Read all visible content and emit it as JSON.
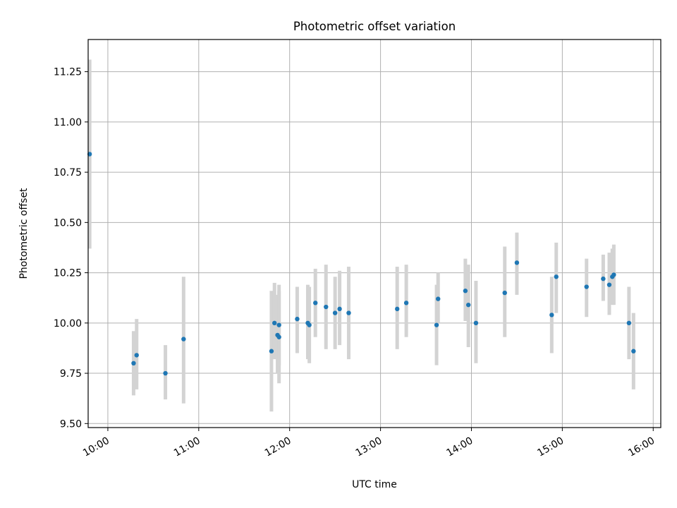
{
  "chart_data": {
    "type": "scatter",
    "title": "Photometric offset variation",
    "xlabel": "UTC time",
    "ylabel": "Photometric offset",
    "xlim": [
      "09:47",
      "16:05"
    ],
    "ylim": [
      9.48,
      11.41
    ],
    "x_ticks": [
      "10:00",
      "11:00",
      "12:00",
      "13:00",
      "14:00",
      "15:00",
      "16:00"
    ],
    "y_ticks": [
      "9.50",
      "9.75",
      "10.00",
      "10.25",
      "10.50",
      "10.75",
      "11.00",
      "11.25"
    ],
    "grid": true,
    "errorbars": true,
    "colors": {
      "point": "#1f77b4",
      "errorbar": "#d3d3d3",
      "grid": "#b0b0b0"
    },
    "points": [
      {
        "x": "09:48",
        "y": 10.84,
        "ylow": 10.37,
        "yhigh": 11.31
      },
      {
        "x": "10:17",
        "y": 9.8,
        "ylow": 9.64,
        "yhigh": 9.96
      },
      {
        "x": "10:19",
        "y": 9.84,
        "ylow": 9.67,
        "yhigh": 10.02
      },
      {
        "x": "10:38",
        "y": 9.75,
        "ylow": 9.62,
        "yhigh": 9.89
      },
      {
        "x": "10:50",
        "y": 9.92,
        "ylow": 9.6,
        "yhigh": 10.23
      },
      {
        "x": "11:48",
        "y": 9.86,
        "ylow": 9.56,
        "yhigh": 10.16
      },
      {
        "x": "11:50",
        "y": 10.0,
        "ylow": 9.82,
        "yhigh": 10.2
      },
      {
        "x": "11:52",
        "y": 9.94,
        "ylow": 9.75,
        "yhigh": 10.14
      },
      {
        "x": "11:53",
        "y": 9.93,
        "ylow": 9.7,
        "yhigh": 10.16
      },
      {
        "x": "11:53",
        "y": 9.99,
        "ylow": 9.79,
        "yhigh": 10.19
      },
      {
        "x": "12:05",
        "y": 10.02,
        "ylow": 9.85,
        "yhigh": 10.18
      },
      {
        "x": "12:12",
        "y": 10.0,
        "ylow": 9.82,
        "yhigh": 10.19
      },
      {
        "x": "12:13",
        "y": 9.99,
        "ylow": 9.8,
        "yhigh": 10.18
      },
      {
        "x": "12:17",
        "y": 10.1,
        "ylow": 9.93,
        "yhigh": 10.27
      },
      {
        "x": "12:24",
        "y": 10.08,
        "ylow": 9.87,
        "yhigh": 10.29
      },
      {
        "x": "12:30",
        "y": 10.05,
        "ylow": 9.87,
        "yhigh": 10.23
      },
      {
        "x": "12:33",
        "y": 10.07,
        "ylow": 9.89,
        "yhigh": 10.26
      },
      {
        "x": "12:39",
        "y": 10.05,
        "ylow": 9.82,
        "yhigh": 10.28
      },
      {
        "x": "13:11",
        "y": 10.07,
        "ylow": 9.87,
        "yhigh": 10.28
      },
      {
        "x": "13:17",
        "y": 10.1,
        "ylow": 9.93,
        "yhigh": 10.29
      },
      {
        "x": "13:37",
        "y": 9.99,
        "ylow": 9.79,
        "yhigh": 10.19
      },
      {
        "x": "13:38",
        "y": 10.12,
        "ylow": 10.0,
        "yhigh": 10.25
      },
      {
        "x": "13:56",
        "y": 10.16,
        "ylow": 10.01,
        "yhigh": 10.32
      },
      {
        "x": "13:58",
        "y": 10.09,
        "ylow": 9.88,
        "yhigh": 10.29
      },
      {
        "x": "14:03",
        "y": 10.0,
        "ylow": 9.8,
        "yhigh": 10.21
      },
      {
        "x": "14:22",
        "y": 10.15,
        "ylow": 9.93,
        "yhigh": 10.38
      },
      {
        "x": "14:30",
        "y": 10.3,
        "ylow": 10.14,
        "yhigh": 10.45
      },
      {
        "x": "14:53",
        "y": 10.04,
        "ylow": 9.85,
        "yhigh": 10.23
      },
      {
        "x": "14:56",
        "y": 10.23,
        "ylow": 10.05,
        "yhigh": 10.4
      },
      {
        "x": "15:16",
        "y": 10.18,
        "ylow": 10.03,
        "yhigh": 10.32
      },
      {
        "x": "15:27",
        "y": 10.22,
        "ylow": 10.11,
        "yhigh": 10.34
      },
      {
        "x": "15:31",
        "y": 10.19,
        "ylow": 10.04,
        "yhigh": 10.35
      },
      {
        "x": "15:33",
        "y": 10.23,
        "ylow": 10.09,
        "yhigh": 10.37
      },
      {
        "x": "15:34",
        "y": 10.24,
        "ylow": 10.09,
        "yhigh": 10.39
      },
      {
        "x": "15:44",
        "y": 10.0,
        "ylow": 9.82,
        "yhigh": 10.18
      },
      {
        "x": "15:47",
        "y": 9.86,
        "ylow": 9.67,
        "yhigh": 10.05
      }
    ]
  }
}
